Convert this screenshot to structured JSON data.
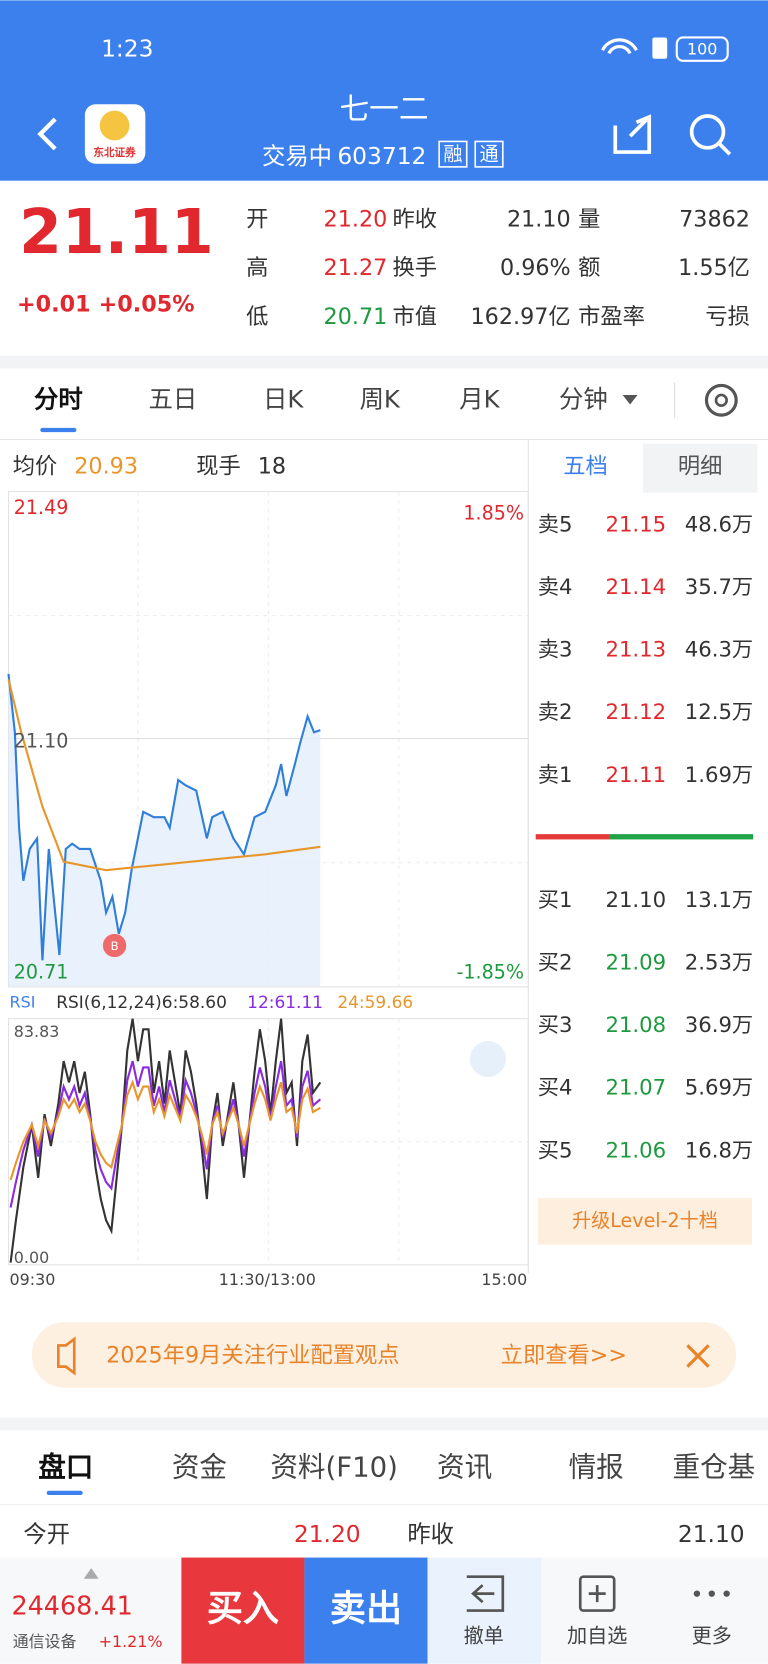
{
  "status_bar": {
    "time": "1:23",
    "battery": "100"
  },
  "header": {
    "title": "七一二",
    "status": "交易中",
    "code": "603712",
    "badges": [
      "融",
      "通"
    ],
    "logo_text": "东北证券"
  },
  "quote": {
    "price": "21.11",
    "change": "+0.01",
    "change_pct": "+0.05%",
    "stats": [
      [
        "开",
        "21.20",
        "昨收",
        "21.10",
        "量",
        "73862"
      ],
      [
        "高",
        "21.27",
        "换手",
        "0.96%",
        "额",
        "1.55亿"
      ],
      [
        "低",
        "20.71",
        "市值",
        "162.97亿",
        "市盈率",
        "亏损"
      ]
    ]
  },
  "chart_tabs": [
    "分时",
    "五日",
    "日K",
    "周K",
    "月K",
    "分钟"
  ],
  "intraday": {
    "avg_label": "均价",
    "avg_value": "20.93",
    "volume_label": "现手",
    "volume_value": "18",
    "price_high": "21.49",
    "pct_high": "1.85%",
    "price_mid": "21.10",
    "price_low": "20.71",
    "pct_low": "-1.85%",
    "marker": "B",
    "rsi_name": "RSI",
    "rsi_params": "RSI(6,12,24)6:58.60",
    "rsi_12": "12:61.11",
    "rsi_24": "24:59.66",
    "rsi_max": "83.83",
    "rsi_min": "0.00",
    "times": [
      "09:30",
      "11:30/13:00",
      "15:00"
    ]
  },
  "order_book": {
    "tabs": [
      "五档",
      "明细"
    ],
    "asks": [
      [
        "卖5",
        "21.15",
        "48.6万"
      ],
      [
        "卖4",
        "21.14",
        "35.7万"
      ],
      [
        "卖3",
        "21.13",
        "46.3万"
      ],
      [
        "卖2",
        "21.12",
        "12.5万"
      ],
      [
        "卖1",
        "21.11",
        "1.69万"
      ]
    ],
    "bids": [
      [
        "买1",
        "21.10",
        "13.1万"
      ],
      [
        "买2",
        "21.09",
        "2.53万"
      ],
      [
        "买3",
        "21.08",
        "36.9万"
      ],
      [
        "买4",
        "21.07",
        "5.69万"
      ],
      [
        "买5",
        "21.06",
        "16.8万"
      ]
    ],
    "upgrade": "升级Level-2十档"
  },
  "banner": {
    "text": "2025年9月关注行业配置观点",
    "link": "立即查看>>"
  },
  "detail_tabs": [
    "盘口",
    "资金",
    "资料(F10)",
    "资讯",
    "情报",
    "重仓基"
  ],
  "detail_row": [
    "今开",
    "21.20",
    "昨收",
    "21.10"
  ],
  "bottom_bar": {
    "index_value": "24468.41",
    "index_name": "通信设备",
    "index_change": "+1.21%",
    "buy": "买入",
    "sell": "卖出",
    "actions": [
      "撤单",
      "加自选",
      "更多"
    ]
  }
}
